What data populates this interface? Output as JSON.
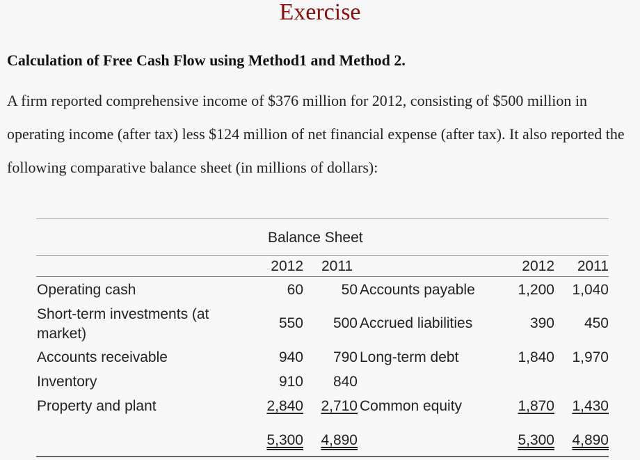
{
  "title": "Exercise",
  "subtitle": "Calculation of Free Cash Flow using Method1 and Method 2.",
  "paragraph": "A firm reported comprehensive income of $376 million for 2012, consisting of $500 million in operating income (after tax) less $124 million of net financial expense (after tax). It also reported the following comparative balance sheet (in millions of dollars):",
  "table": {
    "caption": "Balance Sheet",
    "header": {
      "y1": "2012",
      "y2": "2011",
      "ry1": "2012",
      "ry2": "2011"
    },
    "rows": [
      {
        "left": "Operating cash",
        "v1": "60",
        "v2": "50",
        "right": "Accounts payable",
        "r1": "1,200",
        "r2": "1,040"
      },
      {
        "left": "Short-term investments (at market)",
        "v1": "550",
        "v2": "500",
        "right": "Accrued liabilities",
        "r1": "390",
        "r2": "450"
      },
      {
        "left": "Accounts receivable",
        "v1": "940",
        "v2": "790",
        "right": "Long-term debt",
        "r1": "1,840",
        "r2": "1,970"
      },
      {
        "left": "Inventory",
        "v1": "910",
        "v2": "840",
        "right": "",
        "r1": "",
        "r2": ""
      },
      {
        "left": "Property and plant",
        "v1": "2,840",
        "v2": "2,710",
        "right": "Common equity",
        "r1": "1,870",
        "r2": "1,430"
      }
    ],
    "totals": {
      "v1": "5,300",
      "v2": "4,890",
      "r1": "5,300",
      "r2": "4,890"
    }
  }
}
